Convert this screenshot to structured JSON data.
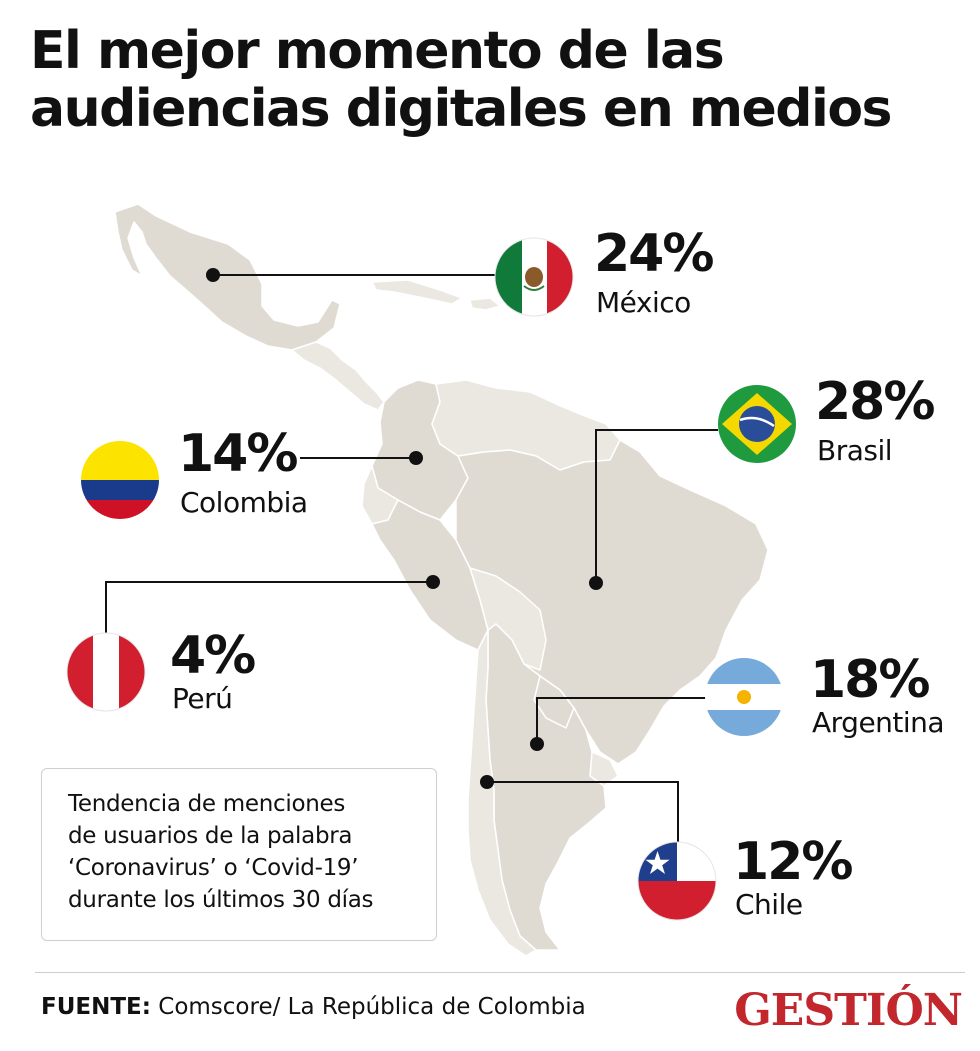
{
  "title": [
    "El mejor momento de las",
    "audiencias digitales en medios"
  ],
  "countries": [
    {
      "key": "mexico",
      "value": "24%",
      "name": "México"
    },
    {
      "key": "brasil",
      "value": "28%",
      "name": "Brasil"
    },
    {
      "key": "colombia",
      "value": "14%",
      "name": "Colombia"
    },
    {
      "key": "peru",
      "value": "4%",
      "name": "Perú"
    },
    {
      "key": "argentina",
      "value": "18%",
      "name": "Argentina"
    },
    {
      "key": "chile",
      "value": "12%",
      "name": "Chile"
    }
  ],
  "note": [
    "Tendencia de menciones",
    "de usuarios de la palabra",
    "‘Coronavirus’ o ‘Covid-19’",
    "durante los últimos 30 días"
  ],
  "source": {
    "label": "FUENTE:",
    "text": "Comscore/ La República de Colombia"
  },
  "logo": "GESTIÓN",
  "colors": {
    "land": "#e0dbd2",
    "land_light": "#ebe8e2",
    "border": "#ffffff",
    "brand": "#c1272d"
  }
}
